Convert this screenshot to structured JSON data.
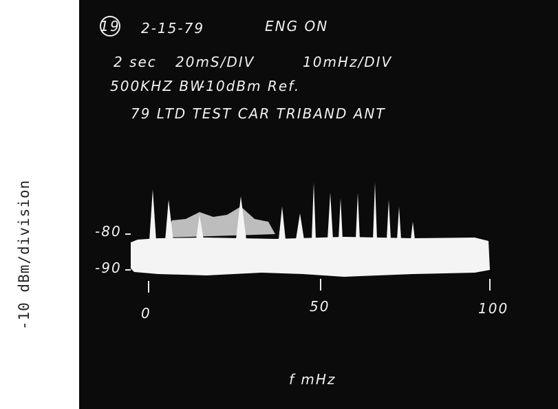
{
  "axis_label": "-10 dBm/division",
  "annotations": {
    "number": "19",
    "date": "2-15-79",
    "status": "ENG ON",
    "sweep": "2 sec",
    "time_scale": "20mS/DIV",
    "freq_scale": "10mHz/DIV",
    "bandwidth": "500KHZ BW",
    "reference": "-10dBm Ref.",
    "description": "79 LTD TEST CAR TRIBAND ANT"
  },
  "level_labels": [
    "-80",
    "-90"
  ],
  "frequency_labels": [
    "0",
    "50",
    "100"
  ],
  "frequency_unit": "f mHz"
}
